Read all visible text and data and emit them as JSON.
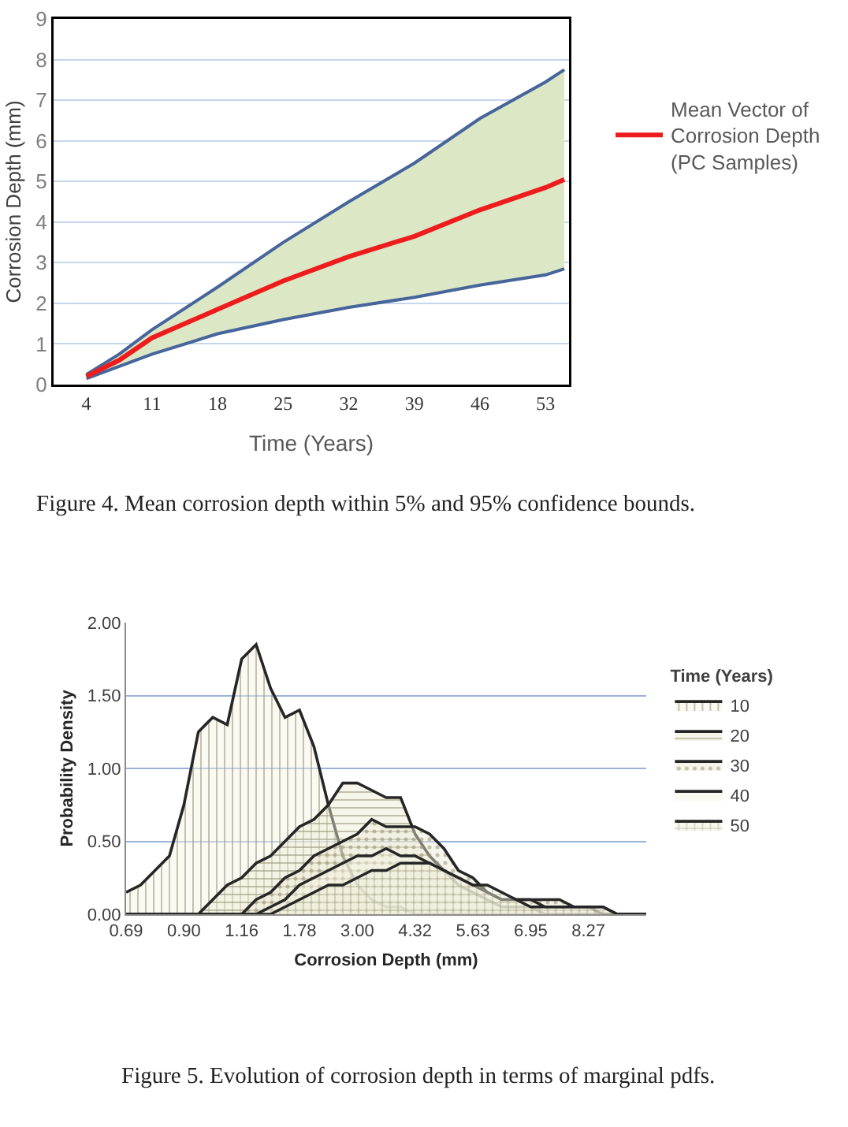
{
  "chart_data": [
    {
      "type": "line",
      "xlabel": "Time (Years)",
      "ylabel": "Corrosion Depth (mm)",
      "x": [
        4,
        7.5,
        11,
        18,
        25,
        32,
        39,
        46,
        53,
        55
      ],
      "series": [
        {
          "color": "#46659a",
          "values": [
            0.25,
            0.75,
            1.35,
            2.4,
            3.5,
            4.5,
            5.45,
            6.55,
            7.45,
            7.75
          ]
        },
        {
          "color": "#46659a",
          "values": [
            0.15,
            0.45,
            0.75,
            1.25,
            1.6,
            1.9,
            2.15,
            2.45,
            2.7,
            2.85
          ]
        },
        {
          "name": "Mean Vector of Corrosion Depth (PC Samples)",
          "color": "#ee1c1c",
          "values": [
            0.2,
            0.6,
            1.15,
            1.85,
            2.55,
            3.15,
            3.65,
            4.3,
            4.85,
            5.05
          ],
          "lower": [
            0.15,
            0.45,
            0.75,
            1.25,
            1.6,
            1.9,
            2.15,
            2.45,
            2.7,
            2.85
          ],
          "upper": [
            0.25,
            0.75,
            1.35,
            2.4,
            3.5,
            4.5,
            5.45,
            6.55,
            7.45,
            7.75
          ]
        }
      ],
      "xlim": [
        0.5,
        55.5
      ],
      "xticks": [
        4,
        11,
        18,
        25,
        32,
        39,
        46,
        53
      ],
      "ylim": [
        0,
        9
      ],
      "yticks": [
        0,
        1,
        2,
        3,
        4,
        5,
        6,
        7,
        8,
        9
      ],
      "grid": "y",
      "legend": "top right",
      "annotations": [
        "Figure 4. Mean corrosion depth within 5% and 95% confidence bounds."
      ]
    },
    {
      "type": "area",
      "xlabel": "Corrosion Depth (mm)",
      "ylabel": "Probability Density",
      "legend_title": "Time (Years)",
      "categories": [
        "0.69",
        null,
        null,
        null,
        "0.90",
        null,
        null,
        null,
        "1.16",
        null,
        null,
        null,
        "1.78",
        null,
        null,
        null,
        "3.00",
        null,
        null,
        null,
        "4.32",
        null,
        null,
        null,
        "5.63",
        null,
        null,
        null,
        "6.95",
        null,
        null,
        null,
        "8.27",
        null,
        null,
        null,
        null
      ],
      "series": [
        {
          "name": "10",
          "color": "#f4f2e2",
          "values": [
            0.15,
            0.2,
            0.3,
            0.4,
            0.75,
            1.25,
            1.35,
            1.3,
            1.75,
            1.85,
            1.55,
            1.35,
            1.4,
            1.15,
            0.75,
            0.4,
            0.2,
            0.1,
            0.05,
            0.05,
            0,
            0,
            0,
            0,
            0,
            0,
            0,
            0,
            0,
            0,
            0,
            0,
            0,
            0,
            0,
            0,
            0
          ]
        },
        {
          "name": "20",
          "color": "#edebd2",
          "values": [
            0,
            0,
            0,
            0,
            0,
            0,
            0.1,
            0.2,
            0.25,
            0.35,
            0.4,
            0.5,
            0.6,
            0.65,
            0.75,
            0.9,
            0.9,
            0.85,
            0.8,
            0.8,
            0.55,
            0.4,
            0.3,
            0.2,
            0.15,
            0.1,
            0.05,
            0.05,
            0.05,
            0,
            0,
            0,
            0,
            0,
            0,
            0,
            0
          ]
        },
        {
          "name": "30",
          "color": "#ebe9d3",
          "values": [
            0,
            0,
            0,
            0,
            0,
            0,
            0,
            0,
            0,
            0.1,
            0.15,
            0.25,
            0.3,
            0.4,
            0.45,
            0.5,
            0.55,
            0.65,
            0.6,
            0.6,
            0.6,
            0.55,
            0.45,
            0.3,
            0.25,
            0.15,
            0.1,
            0.1,
            0.1,
            0.1,
            0.1,
            0.05,
            0.05,
            0,
            0,
            0,
            0
          ]
        },
        {
          "name": "40",
          "color": "#f3f2e3",
          "values": [
            0,
            0,
            0,
            0,
            0,
            0,
            0,
            0,
            0,
            0,
            0.05,
            0.1,
            0.2,
            0.25,
            0.3,
            0.35,
            0.4,
            0.4,
            0.45,
            0.4,
            0.4,
            0.35,
            0.3,
            0.25,
            0.2,
            0.15,
            0.1,
            0.1,
            0.1,
            0.05,
            0.05,
            0.05,
            0.05,
            0.05,
            0,
            0,
            0
          ]
        },
        {
          "name": "50",
          "color": "#efeed9",
          "values": [
            0,
            0,
            0,
            0,
            0,
            0,
            0,
            0,
            0,
            0,
            0,
            0.05,
            0.1,
            0.15,
            0.2,
            0.2,
            0.25,
            0.3,
            0.3,
            0.35,
            0.35,
            0.35,
            0.3,
            0.25,
            0.2,
            0.2,
            0.15,
            0.1,
            0.05,
            0.05,
            0.05,
            0.05,
            0.05,
            0.05,
            0,
            0,
            0
          ]
        }
      ],
      "ylim": [
        0,
        2
      ],
      "yticks": [
        {
          "value": 0,
          "label": "0.00"
        },
        {
          "value": 0.5,
          "label": "0.50"
        },
        {
          "value": 1,
          "label": "1.00"
        },
        {
          "value": 1.5,
          "label": "1.50"
        },
        {
          "value": 2,
          "label": "2.00"
        }
      ],
      "grid": "y",
      "legend": "right",
      "annotations": [
        "Figure 5. Evolution of corrosion depth in terms of marginal pdfs."
      ]
    }
  ]
}
